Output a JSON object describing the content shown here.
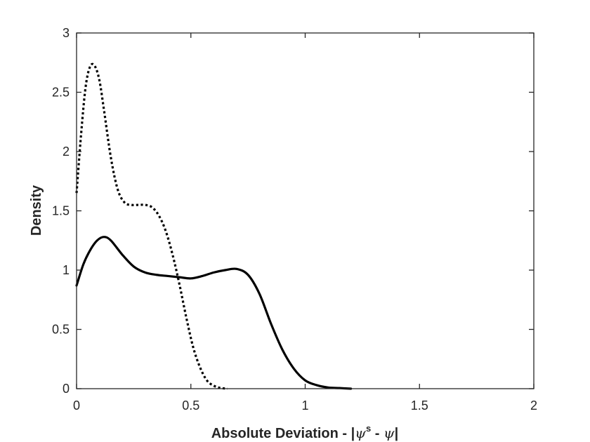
{
  "chart_data": {
    "type": "line",
    "title": "",
    "xlabel": {
      "prefix": "Absolute Deviation - |",
      "psi": "ψ",
      "sup": "s",
      "mid": " - ",
      "suffix": "|"
    },
    "ylabel": "Density",
    "xlim": [
      0,
      2
    ],
    "ylim": [
      0,
      3
    ],
    "xticks": [
      0,
      0.5,
      1,
      1.5,
      2
    ],
    "xtick_labels": [
      "0",
      "0.5",
      "1",
      "1.5",
      "2"
    ],
    "yticks": [
      0,
      0.5,
      1,
      1.5,
      2,
      2.5,
      3
    ],
    "ytick_labels": [
      "0",
      "0.5",
      "1",
      "1.5",
      "2",
      "2.5",
      "3"
    ],
    "grid": false,
    "legend": "none",
    "series": [
      {
        "style": "solid",
        "color": "#000000",
        "x": [
          0,
          0.03,
          0.06,
          0.09,
          0.12,
          0.15,
          0.2,
          0.25,
          0.3,
          0.35,
          0.4,
          0.45,
          0.5,
          0.55,
          0.6,
          0.65,
          0.7,
          0.75,
          0.8,
          0.85,
          0.9,
          0.95,
          1.0,
          1.05,
          1.1,
          1.15,
          1.2
        ],
        "y": [
          0.87,
          1.05,
          1.17,
          1.25,
          1.28,
          1.25,
          1.13,
          1.03,
          0.98,
          0.96,
          0.95,
          0.94,
          0.93,
          0.95,
          0.98,
          1.0,
          1.01,
          0.96,
          0.8,
          0.55,
          0.33,
          0.17,
          0.07,
          0.03,
          0.01,
          0.005,
          0.0
        ]
      },
      {
        "style": "dotted",
        "color": "#000000",
        "x": [
          0,
          0.02,
          0.04,
          0.06,
          0.08,
          0.1,
          0.12,
          0.15,
          0.18,
          0.21,
          0.24,
          0.27,
          0.3,
          0.33,
          0.36,
          0.39,
          0.42,
          0.45,
          0.48,
          0.51,
          0.54,
          0.57,
          0.6,
          0.63,
          0.66
        ],
        "y": [
          1.65,
          2.15,
          2.55,
          2.72,
          2.72,
          2.6,
          2.35,
          1.95,
          1.68,
          1.57,
          1.55,
          1.55,
          1.55,
          1.53,
          1.46,
          1.33,
          1.13,
          0.88,
          0.6,
          0.35,
          0.18,
          0.07,
          0.025,
          0.006,
          0.0
        ]
      }
    ]
  }
}
